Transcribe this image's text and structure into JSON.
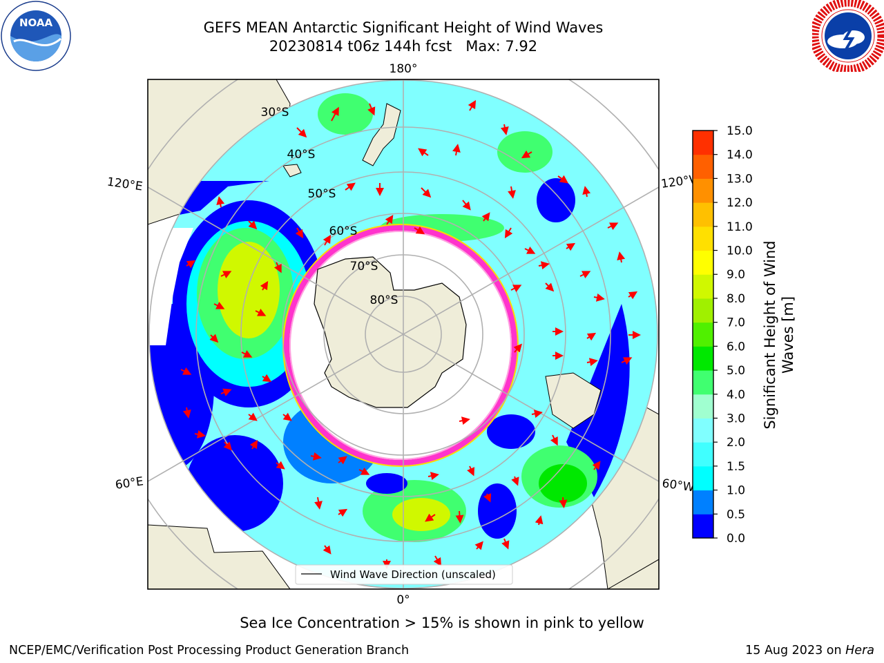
{
  "title": {
    "line1": "GEFS MEAN Antarctic Significant Height of Wind Waves",
    "line2": "20230814 t06z 144h fcst   Max: 7.92"
  },
  "logos": {
    "left": "noaa-logo",
    "left_text": "NOAA",
    "right": "national-weather-service-logo"
  },
  "map": {
    "projection": "south-polar-stereographic",
    "longitude_labels": {
      "top": "180°",
      "bottom": "0°",
      "left_upper": "120°E",
      "left_lower": "60°E",
      "right_upper": "120°W",
      "right_lower": "60°W"
    },
    "latitude_labels": [
      "30°S",
      "40°S",
      "50°S",
      "60°S",
      "70°S",
      "80°S"
    ],
    "colors": {
      "ocean_low": "#0000ff",
      "land": "#efedd9",
      "sea_ice": "#ff33cc",
      "arrows": "#ff0000",
      "grid": "#b0b0b0"
    }
  },
  "legend": {
    "label": "Wind Wave Direction (unscaled)"
  },
  "colorbar": {
    "title_line1": "Significant Height of Wind",
    "title_line2": "Waves [m]",
    "ticks": [
      "0.0",
      "0.5",
      "1.0",
      "1.5",
      "2.0",
      "3.0",
      "4.0",
      "5.0",
      "6.0",
      "7.0",
      "8.0",
      "9.0",
      "10.0",
      "11.0",
      "12.0",
      "13.0",
      "14.0",
      "15.0"
    ],
    "colors": [
      "#0000ff",
      "#0080ff",
      "#00ffff",
      "#40ffff",
      "#80ffff",
      "#a0ffd0",
      "#40ff70",
      "#00e800",
      "#50f000",
      "#a0f000",
      "#d0f800",
      "#ffff00",
      "#ffe000",
      "#ffc000",
      "#ff9000",
      "#ff6000",
      "#ff3000"
    ]
  },
  "footer": {
    "ice_note": "Sea Ice Concentration > 15% is shown in pink to yellow",
    "credit": "NCEP/EMC/Verification Post Processing Product Generation Branch",
    "date_prefix": "15 Aug 2023 on ",
    "machine": "Hera"
  }
}
